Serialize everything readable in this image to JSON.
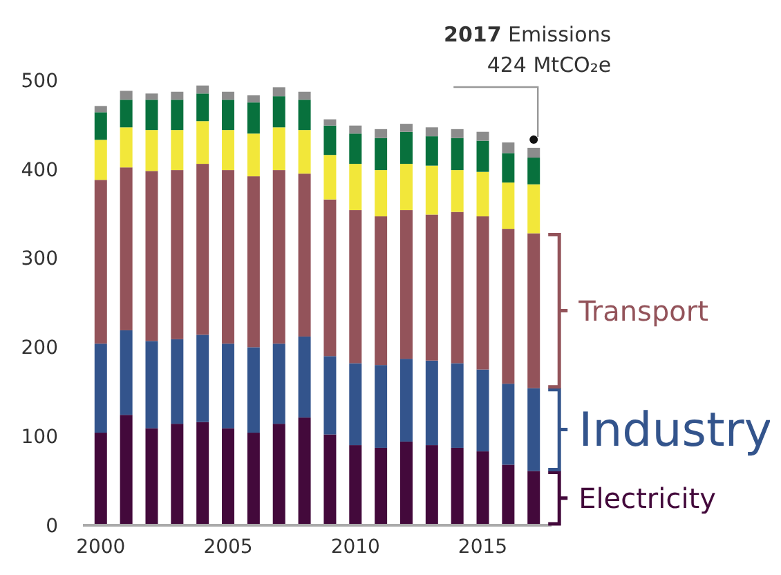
{
  "chart_data": {
    "type": "bar",
    "stacked": true,
    "x": [
      2000,
      2001,
      2002,
      2003,
      2004,
      2005,
      2006,
      2007,
      2008,
      2009,
      2010,
      2011,
      2012,
      2013,
      2014,
      2015,
      2016,
      2017
    ],
    "xlim": [
      1999.3,
      2017.7
    ],
    "xticks": [
      2000,
      2005,
      2010,
      2015
    ],
    "ylim": [
      0,
      500
    ],
    "yticks": [
      0,
      100,
      200,
      300,
      400,
      500
    ],
    "grid": false,
    "legend": "right",
    "series": [
      {
        "name": "Electricity",
        "color": "#43093b",
        "values": [
          104,
          124,
          109,
          114,
          116,
          109,
          104,
          114,
          121,
          102,
          90,
          87,
          94,
          90,
          87,
          83,
          68,
          61
        ]
      },
      {
        "name": "Industry",
        "color": "#33548c",
        "values": [
          100,
          95,
          98,
          95,
          98,
          95,
          96,
          90,
          91,
          88,
          92,
          93,
          93,
          95,
          95,
          92,
          91,
          93
        ]
      },
      {
        "name": "Transport",
        "color": "#93535a",
        "values": [
          184,
          183,
          191,
          190,
          192,
          195,
          192,
          195,
          183,
          176,
          172,
          167,
          167,
          164,
          170,
          172,
          174,
          174
        ]
      },
      {
        "color": "#f2e73a",
        "values": [
          45,
          45,
          46,
          45,
          48,
          45,
          48,
          48,
          49,
          50,
          52,
          52,
          52,
          55,
          47,
          50,
          52,
          55
        ]
      },
      {
        "color": "#08713d",
        "values": [
          31,
          31,
          34,
          34,
          31,
          34,
          35,
          35,
          34,
          33,
          34,
          36,
          36,
          33,
          36,
          35,
          33,
          30
        ]
      },
      {
        "color": "#8c8c8c",
        "values": [
          7,
          10,
          7,
          9,
          9,
          9,
          8,
          10,
          9,
          7,
          9,
          10,
          9,
          10,
          10,
          10,
          12,
          11
        ]
      }
    ],
    "annotations": [
      "2017 Emissions\n424 MtCO₂e"
    ]
  }
}
